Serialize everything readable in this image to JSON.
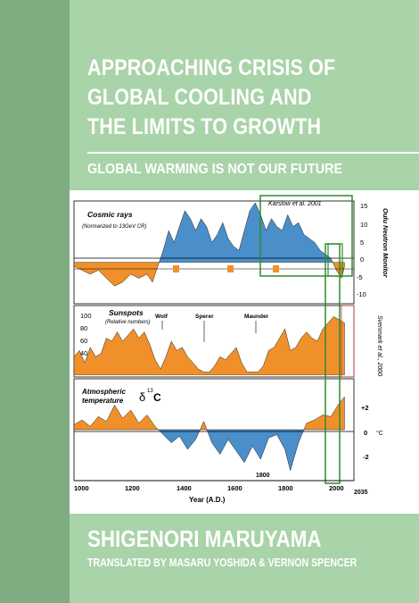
{
  "cover": {
    "title_lines": [
      "APPROACHING CRISIS OF",
      "GLOBAL COOLING AND",
      "THE LIMITS TO GROWTH"
    ],
    "subtitle": "GLOBAL WARMING IS NOT OUR FUTURE",
    "author": "SHIGENORI MARUYAMA",
    "translators": "TRANSLATED BY MASARU YOSHIDA & VERNON SPENCER"
  },
  "colors": {
    "spine": "#7fad81",
    "background": "#a9d3a9",
    "positive_fill": "#4a8fc9",
    "negative_fill": "#f0902a",
    "highlight_box": "#2e8b2e",
    "marker_box": "#c44040"
  },
  "figure": {
    "panels": {
      "cosmic": {
        "title": "Cosmic rays",
        "note": "(Normarized to 13GeV CR)",
        "right_axis_label": "Oulu Neutron Monitor",
        "right_ticks": [
          "15",
          "10",
          "5",
          "0",
          "-5",
          "-10"
        ],
        "source": "Karslow et al. 2001"
      },
      "sunspots": {
        "title": "Sunspots",
        "note": "(Relative numbers)",
        "left_ticks": [
          "100",
          "80",
          "60",
          "40"
        ],
        "minima": [
          "Wolf",
          "Sperer",
          "Maunder"
        ],
        "source": "Svenmark et al., 2000"
      },
      "temperature": {
        "title_line1": "Atmospheric",
        "title_line2": "temperature",
        "delta_label": "δ",
        "isotope": "13",
        "carbon": "C",
        "right_ticks": [
          "+2",
          "0",
          "-2"
        ],
        "unit": "°C",
        "annotation": "1800"
      }
    },
    "x_ticks": [
      "1000",
      "1200",
      "1400",
      "1600",
      "1800",
      "2000"
    ],
    "x_tick_extra": "2035",
    "x_axis_label": "Year (A.D.)"
  },
  "chart_data": [
    {
      "type": "area",
      "title": "Cosmic rays",
      "x_range": [
        1000,
        2035
      ],
      "ylabel": "Oulu Neutron Monitor",
      "ylim": [
        -10,
        15
      ],
      "series": [
        {
          "x": [
            1000,
            1030,
            1060,
            1090,
            1120,
            1150,
            1180,
            1210,
            1240,
            1270,
            1290,
            1310,
            1330,
            1350,
            1370,
            1390,
            1410,
            1430,
            1450,
            1470,
            1490,
            1510,
            1530,
            1550,
            1570,
            1590,
            1610,
            1630,
            1650,
            1670,
            1690,
            1710,
            1730,
            1750,
            1770,
            1790,
            1810,
            1830,
            1850,
            1870,
            1890,
            1910,
            1930,
            1950,
            1970,
            1990,
            2000
          ],
          "values": [
            -1,
            -2,
            -3,
            -2,
            -4,
            -6,
            -5,
            -3,
            -4,
            -3,
            -5,
            -1,
            3,
            8,
            5,
            9,
            13,
            11,
            8,
            11,
            9,
            5,
            7,
            10,
            6,
            4,
            3,
            8,
            13,
            15,
            12,
            8,
            11,
            9,
            8,
            12,
            9,
            10,
            7,
            6,
            5,
            3,
            2,
            1,
            -2,
            -4,
            -1
          ]
        }
      ]
    },
    {
      "type": "area",
      "title": "Sunspots",
      "x_range": [
        1000,
        2035
      ],
      "ylim": [
        0,
        110
      ],
      "series": [
        {
          "x": [
            1000,
            1020,
            1040,
            1060,
            1080,
            1100,
            1120,
            1140,
            1160,
            1180,
            1200,
            1220,
            1240,
            1260,
            1280,
            1300,
            1320,
            1340,
            1360,
            1380,
            1400,
            1420,
            1440,
            1460,
            1480,
            1500,
            1520,
            1540,
            1560,
            1580,
            1600,
            1620,
            1640,
            1660,
            1680,
            1700,
            1720,
            1740,
            1760,
            1780,
            1800,
            1820,
            1840,
            1860,
            1880,
            1900,
            1920,
            1940,
            1960,
            1980,
            2000
          ],
          "values": [
            30,
            40,
            20,
            45,
            30,
            35,
            60,
            55,
            70,
            55,
            65,
            75,
            60,
            70,
            50,
            25,
            10,
            30,
            55,
            40,
            45,
            30,
            20,
            10,
            5,
            5,
            15,
            30,
            25,
            35,
            45,
            20,
            5,
            5,
            5,
            15,
            40,
            45,
            60,
            75,
            40,
            45,
            60,
            70,
            60,
            55,
            75,
            85,
            95,
            90,
            85
          ]
        }
      ]
    },
    {
      "type": "area",
      "title": "Atmospheric temperature δ13C",
      "x_range": [
        1000,
        2035
      ],
      "ylabel": "°C",
      "ylim": [
        -3,
        3
      ],
      "series": [
        {
          "x": [
            1000,
            1030,
            1060,
            1090,
            1120,
            1150,
            1180,
            1210,
            1240,
            1270,
            1300,
            1330,
            1360,
            1390,
            1420,
            1450,
            1480,
            1510,
            1540,
            1570,
            1600,
            1630,
            1660,
            1690,
            1720,
            1750,
            1780,
            1800,
            1830,
            1860,
            1890,
            1920,
            1950,
            1980,
            2000
          ],
          "values": [
            0.3,
            0.6,
            0.2,
            0.8,
            0.5,
            1.5,
            0.7,
            1.2,
            0.4,
            0.9,
            0.2,
            -0.3,
            -0.8,
            -0.4,
            -1.2,
            -0.6,
            0.5,
            -0.8,
            -1.5,
            -0.6,
            -1.3,
            -2.0,
            -1.0,
            -1.8,
            -0.5,
            -0.3,
            -1.2,
            -2.5,
            -0.8,
            0.4,
            0.6,
            0.9,
            0.8,
            1.6,
            2.0
          ]
        }
      ]
    }
  ]
}
